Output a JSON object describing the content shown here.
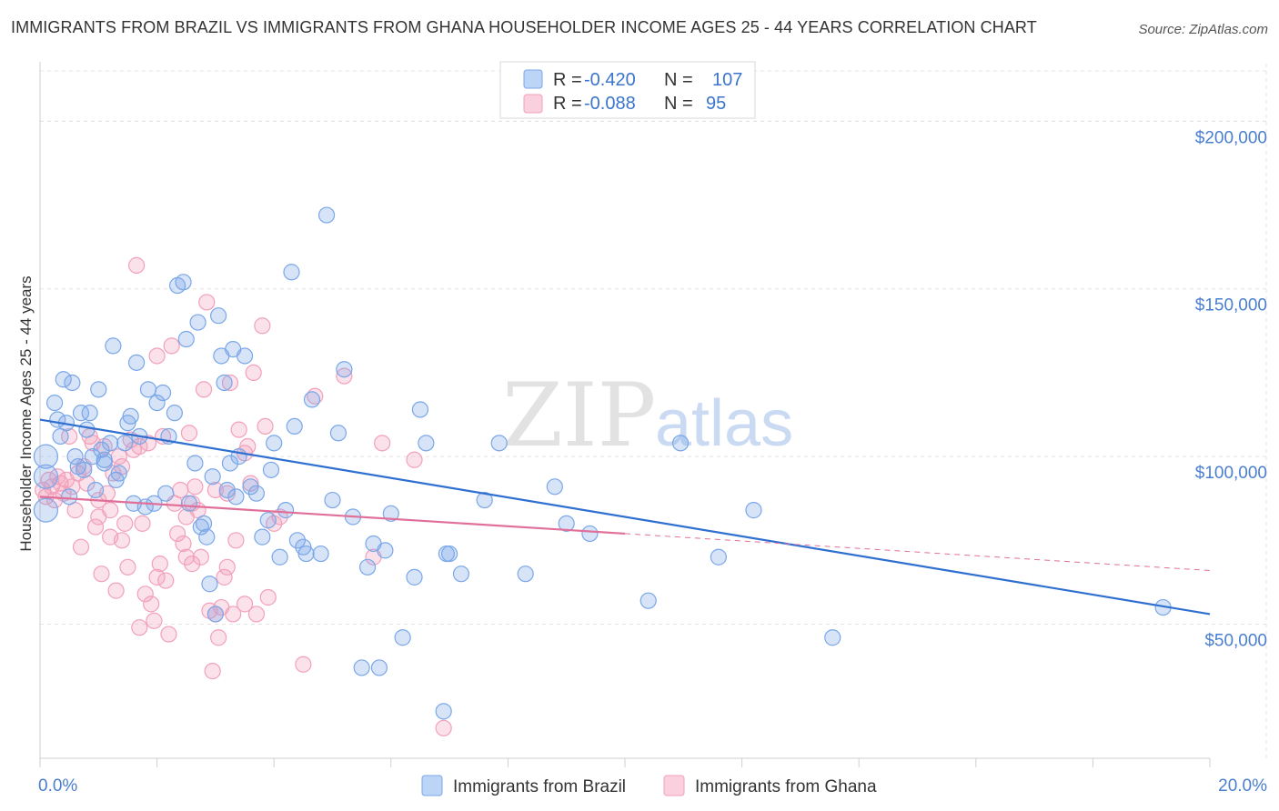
{
  "title": "IMMIGRANTS FROM BRAZIL VS IMMIGRANTS FROM GHANA HOUSEHOLDER INCOME AGES 25 - 44 YEARS CORRELATION CHART",
  "source": "Source: ZipAtlas.com",
  "watermark": {
    "zip": "ZIP",
    "atlas": "atlas"
  },
  "colors": {
    "brazil": "#7aa7e8",
    "ghana": "#f2a0bb",
    "brazil_line": "#2f6fd0",
    "ghana_line": "#e0709a",
    "axis_text": "#4a7ecf"
  },
  "chart_data": {
    "type": "scatter",
    "title": "IMMIGRANTS FROM BRAZIL VS IMMIGRANTS FROM GHANA HOUSEHOLDER INCOME AGES 25 - 44 YEARS CORRELATION CHART",
    "xlabel": "",
    "ylabel": "Householder Income Ages 25 - 44 years",
    "xlim": [
      0,
      20
    ],
    "ylim": [
      10000,
      215000
    ],
    "x_tick_labels": [
      "0.0%",
      "20.0%"
    ],
    "y_ticks": [
      50000,
      100000,
      150000,
      200000
    ],
    "y_tick_labels": [
      "$50,000",
      "$100,000",
      "$150,000",
      "$200,000"
    ],
    "grid": true,
    "legend": {
      "position": "top-center",
      "entries": [
        {
          "series": "Immigrants from Brazil",
          "r_label": "R =",
          "r": "-0.420",
          "n_label": "N =",
          "n": "107"
        },
        {
          "series": "Immigrants from Ghana",
          "r_label": "R =",
          "r": "-0.088",
          "n_label": "N =",
          "n": "95"
        }
      ]
    },
    "series": [
      {
        "name": "Immigrants from Brazil",
        "trend": {
          "x": [
            0,
            20
          ],
          "y": [
            111000,
            53000
          ]
        },
        "points": [
          [
            0.1,
            100000
          ],
          [
            0.1,
            94000
          ],
          [
            0.1,
            84000
          ],
          [
            0.25,
            116000
          ],
          [
            0.3,
            111000
          ],
          [
            0.35,
            106000
          ],
          [
            0.4,
            123000
          ],
          [
            0.45,
            110000
          ],
          [
            0.55,
            122000
          ],
          [
            0.6,
            100000
          ],
          [
            0.65,
            97000
          ],
          [
            0.7,
            113000
          ],
          [
            0.75,
            96000
          ],
          [
            0.8,
            108000
          ],
          [
            0.85,
            113000
          ],
          [
            0.9,
            100000
          ],
          [
            0.95,
            90000
          ],
          [
            1.0,
            120000
          ],
          [
            1.05,
            102000
          ],
          [
            1.1,
            98000
          ],
          [
            1.2,
            104000
          ],
          [
            1.25,
            133000
          ],
          [
            1.3,
            93000
          ],
          [
            1.35,
            95000
          ],
          [
            1.45,
            104000
          ],
          [
            1.5,
            110000
          ],
          [
            1.55,
            112000
          ],
          [
            1.6,
            86000
          ],
          [
            1.65,
            128000
          ],
          [
            1.7,
            106000
          ],
          [
            1.8,
            85000
          ],
          [
            1.85,
            120000
          ],
          [
            1.95,
            86000
          ],
          [
            2.0,
            116000
          ],
          [
            2.1,
            119000
          ],
          [
            2.15,
            89000
          ],
          [
            2.2,
            106000
          ],
          [
            2.3,
            113000
          ],
          [
            2.35,
            151000
          ],
          [
            2.45,
            152000
          ],
          [
            2.5,
            135000
          ],
          [
            2.55,
            86000
          ],
          [
            2.65,
            98000
          ],
          [
            2.7,
            140000
          ],
          [
            2.75,
            79000
          ],
          [
            2.85,
            76000
          ],
          [
            2.9,
            62000
          ],
          [
            2.95,
            94000
          ],
          [
            3.0,
            53000
          ],
          [
            3.05,
            142000
          ],
          [
            3.1,
            130000
          ],
          [
            3.15,
            122000
          ],
          [
            3.25,
            98000
          ],
          [
            3.3,
            132000
          ],
          [
            3.35,
            88000
          ],
          [
            3.4,
            100000
          ],
          [
            3.5,
            130000
          ],
          [
            3.6,
            91000
          ],
          [
            3.7,
            89000
          ],
          [
            3.8,
            76000
          ],
          [
            3.9,
            81000
          ],
          [
            3.95,
            96000
          ],
          [
            4.0,
            104000
          ],
          [
            4.1,
            70000
          ],
          [
            4.2,
            84000
          ],
          [
            4.3,
            155000
          ],
          [
            4.35,
            109000
          ],
          [
            4.5,
            73000
          ],
          [
            4.55,
            71000
          ],
          [
            4.65,
            117000
          ],
          [
            4.8,
            71000
          ],
          [
            4.9,
            172000
          ],
          [
            5.0,
            87000
          ],
          [
            5.1,
            107000
          ],
          [
            5.2,
            126000
          ],
          [
            5.35,
            82000
          ],
          [
            5.5,
            37000
          ],
          [
            5.6,
            67000
          ],
          [
            5.7,
            74000
          ],
          [
            5.8,
            37000
          ],
          [
            6.0,
            83000
          ],
          [
            6.2,
            46000
          ],
          [
            6.4,
            64000
          ],
          [
            6.5,
            114000
          ],
          [
            6.6,
            104000
          ],
          [
            6.9,
            24000
          ],
          [
            6.95,
            71000
          ],
          [
            7.0,
            71000
          ],
          [
            7.2,
            65000
          ],
          [
            7.6,
            87000
          ],
          [
            7.85,
            104000
          ],
          [
            8.3,
            65000
          ],
          [
            8.8,
            91000
          ],
          [
            9.0,
            80000
          ],
          [
            9.4,
            77000
          ],
          [
            10.4,
            57000
          ],
          [
            10.95,
            104000
          ],
          [
            11.6,
            70000
          ],
          [
            12.2,
            84000
          ],
          [
            13.55,
            46000
          ],
          [
            19.2,
            55000
          ],
          [
            0.5,
            88000
          ],
          [
            1.1,
            99000
          ],
          [
            2.8,
            80000
          ],
          [
            3.2,
            90000
          ],
          [
            4.4,
            75000
          ],
          [
            5.9,
            72000
          ]
        ]
      },
      {
        "name": "Immigrants from Ghana",
        "trend": {
          "x": [
            0,
            10
          ],
          "y": [
            88000,
            77000
          ]
        },
        "trend_dashed": {
          "x": [
            10,
            20
          ],
          "y": [
            77000,
            66000
          ]
        },
        "points": [
          [
            0.05,
            90000
          ],
          [
            0.1,
            88000
          ],
          [
            0.15,
            93000
          ],
          [
            0.2,
            91000
          ],
          [
            0.3,
            94000
          ],
          [
            0.35,
            92000
          ],
          [
            0.4,
            89000
          ],
          [
            0.45,
            93000
          ],
          [
            0.5,
            106000
          ],
          [
            0.55,
            91000
          ],
          [
            0.6,
            84000
          ],
          [
            0.7,
            73000
          ],
          [
            0.75,
            97000
          ],
          [
            0.8,
            92000
          ],
          [
            0.85,
            106000
          ],
          [
            0.9,
            104000
          ],
          [
            0.95,
            79000
          ],
          [
            1.0,
            82000
          ],
          [
            1.05,
            65000
          ],
          [
            1.1,
            103000
          ],
          [
            1.15,
            89000
          ],
          [
            1.2,
            76000
          ],
          [
            1.25,
            95000
          ],
          [
            1.3,
            60000
          ],
          [
            1.35,
            100000
          ],
          [
            1.4,
            75000
          ],
          [
            1.45,
            80000
          ],
          [
            1.5,
            67000
          ],
          [
            1.55,
            105000
          ],
          [
            1.6,
            102000
          ],
          [
            1.65,
            157000
          ],
          [
            1.7,
            49000
          ],
          [
            1.75,
            80000
          ],
          [
            1.8,
            59000
          ],
          [
            1.85,
            104000
          ],
          [
            1.9,
            56000
          ],
          [
            1.95,
            51000
          ],
          [
            2.0,
            130000
          ],
          [
            2.05,
            68000
          ],
          [
            2.1,
            106000
          ],
          [
            2.15,
            63000
          ],
          [
            2.2,
            47000
          ],
          [
            2.25,
            133000
          ],
          [
            2.3,
            86000
          ],
          [
            2.35,
            77000
          ],
          [
            2.4,
            90000
          ],
          [
            2.45,
            74000
          ],
          [
            2.5,
            82000
          ],
          [
            2.55,
            107000
          ],
          [
            2.6,
            68000
          ],
          [
            2.65,
            91000
          ],
          [
            2.7,
            84000
          ],
          [
            2.75,
            70000
          ],
          [
            2.8,
            120000
          ],
          [
            2.85,
            146000
          ],
          [
            2.9,
            54000
          ],
          [
            2.95,
            36000
          ],
          [
            3.0,
            53000
          ],
          [
            3.05,
            46000
          ],
          [
            3.1,
            55000
          ],
          [
            3.15,
            64000
          ],
          [
            3.2,
            89000
          ],
          [
            3.25,
            122000
          ],
          [
            3.3,
            53000
          ],
          [
            3.35,
            75000
          ],
          [
            3.4,
            108000
          ],
          [
            3.5,
            101000
          ],
          [
            3.55,
            103000
          ],
          [
            3.6,
            92000
          ],
          [
            3.65,
            125000
          ],
          [
            3.7,
            53000
          ],
          [
            3.8,
            139000
          ],
          [
            3.85,
            109000
          ],
          [
            3.9,
            58000
          ],
          [
            4.1,
            82000
          ],
          [
            4.5,
            38000
          ],
          [
            4.7,
            118000
          ],
          [
            5.2,
            124000
          ],
          [
            5.7,
            70000
          ],
          [
            5.85,
            104000
          ],
          [
            6.4,
            99000
          ],
          [
            6.9,
            19000
          ],
          [
            1.0,
            87000
          ],
          [
            1.4,
            97000
          ],
          [
            2.0,
            64000
          ],
          [
            2.6,
            86000
          ],
          [
            3.0,
            90000
          ],
          [
            3.5,
            56000
          ],
          [
            4.0,
            80000
          ],
          [
            1.7,
            103000
          ],
          [
            0.25,
            87000
          ],
          [
            0.65,
            95000
          ],
          [
            1.2,
            84000
          ],
          [
            2.5,
            70000
          ],
          [
            3.2,
            67000
          ]
        ]
      }
    ]
  },
  "bottom_legend": [
    {
      "label": "Immigrants from Brazil"
    },
    {
      "label": "Immigrants from Ghana"
    }
  ]
}
